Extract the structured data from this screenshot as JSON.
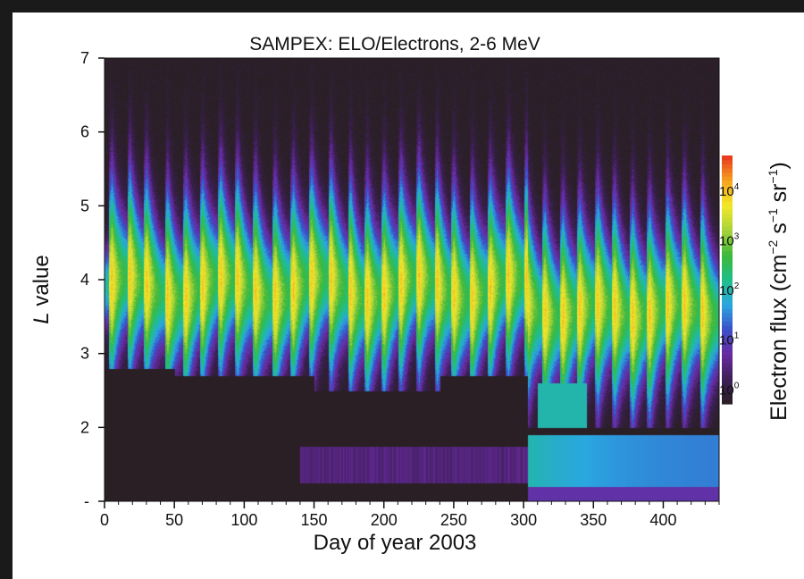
{
  "chart_data": {
    "type": "heatmap",
    "title": "SAMPEX: ELO/Electrons, 2-6 MeV",
    "xlabel": "Day of year 2003",
    "ylabel_italic": "L",
    "ylabel_rest": " value",
    "xlim": [
      0,
      440
    ],
    "ylim": [
      1,
      7
    ],
    "x_ticks": [
      0,
      50,
      100,
      150,
      200,
      250,
      300,
      350,
      400
    ],
    "y_ticks": [
      {
        "value": 1,
        "label": "-"
      },
      {
        "value": 2,
        "label": "2"
      },
      {
        "value": 3,
        "label": "3"
      },
      {
        "value": 4,
        "label": "4"
      },
      {
        "value": 5,
        "label": "5"
      },
      {
        "value": 6,
        "label": "6"
      },
      {
        "value": 7,
        "label": "7"
      }
    ],
    "colorbar": {
      "label_parts": [
        "Electron flux (cm",
        "−2",
        " s",
        "−1",
        " sr",
        "−1",
        ")"
      ],
      "scale": "log",
      "range_log10": [
        -0.3,
        4.7
      ],
      "ticks": [
        {
          "log10": 0,
          "base": "10",
          "exp": "0"
        },
        {
          "log10": 1,
          "base": "10",
          "exp": "1"
        },
        {
          "log10": 2,
          "base": "10",
          "exp": "2"
        },
        {
          "log10": 3,
          "base": "10",
          "exp": "3"
        },
        {
          "log10": 4,
          "base": "10",
          "exp": "4"
        }
      ],
      "colors": [
        "#2a1f24",
        "#3b1f55",
        "#6a2aa0",
        "#3b4fc8",
        "#2aa7e0",
        "#1fbf8a",
        "#3cb83a",
        "#a8d23a",
        "#f2e92a",
        "#f6a21e",
        "#e8361e"
      ]
    },
    "model": {
      "description_values": "peak flux log10 per storm day, storm days",
      "storm_days": [
        5,
        18,
        30,
        45,
        58,
        70,
        83,
        95,
        108,
        122,
        135,
        148,
        162,
        176,
        188,
        200,
        212,
        225,
        238,
        250,
        263,
        276,
        289,
        302,
        315,
        328,
        340,
        353,
        365,
        378,
        390,
        403,
        415,
        428
      ],
      "slot_edge_L_segments": [
        {
          "from": 0,
          "to": 50,
          "L": 2.8
        },
        {
          "from": 50,
          "to": 150,
          "L": 2.7
        },
        {
          "from": 150,
          "to": 240,
          "L": 2.5
        },
        {
          "from": 240,
          "to": 303,
          "L": 2.7
        },
        {
          "from": 303,
          "to": 440,
          "L": 2.0
        }
      ],
      "halloween_storm_day": 303,
      "inner_belt_L": [
        1.2,
        1.9
      ]
    }
  }
}
